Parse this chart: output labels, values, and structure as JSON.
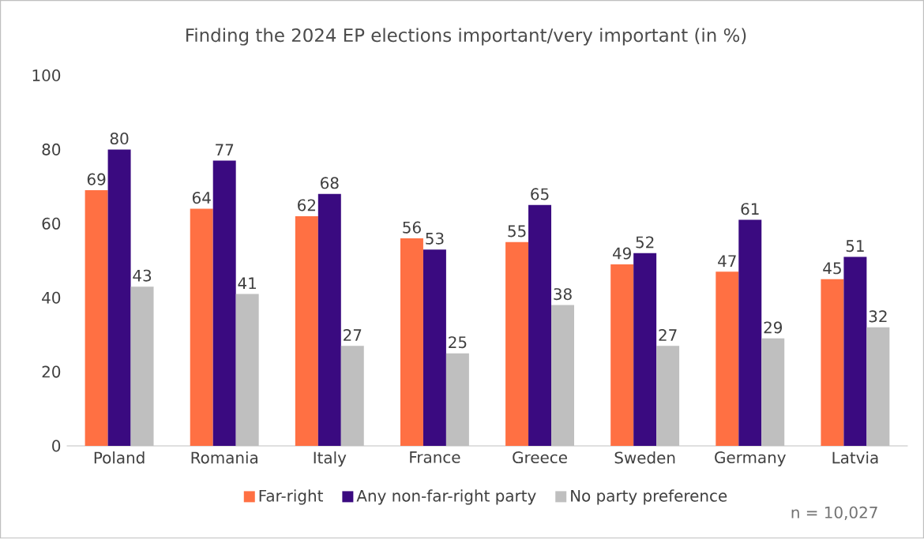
{
  "chart_data": {
    "type": "bar",
    "title": "Finding the 2024 EP elections important/very important (in %)",
    "categories": [
      "Poland",
      "Romania",
      "Italy",
      "France",
      "Greece",
      "Sweden",
      "Germany",
      "Latvia"
    ],
    "series": [
      {
        "name": "Far-right",
        "color": "#ff7043",
        "values": [
          69,
          64,
          62,
          56,
          55,
          49,
          47,
          45
        ]
      },
      {
        "name": "Any non-far-right party",
        "color": "#3a0a80",
        "values": [
          80,
          77,
          68,
          53,
          65,
          52,
          61,
          51
        ]
      },
      {
        "name": "No party preference",
        "color": "#bfbfbf",
        "values": [
          43,
          41,
          27,
          25,
          38,
          27,
          29,
          32
        ]
      }
    ],
    "ylim": [
      0,
      100
    ],
    "yticks": [
      0,
      20,
      40,
      60,
      80,
      100
    ],
    "data_labels": true,
    "legend": "bottom",
    "annotations": [
      "n = 10,027"
    ]
  }
}
